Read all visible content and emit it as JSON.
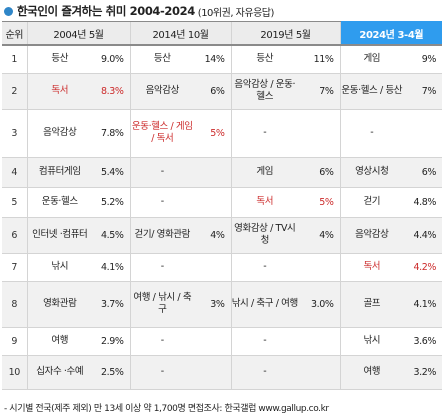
{
  "title": "한국인이 즐겨하는 취미 2004-2024",
  "subtitle": "(10위권, 자유응답)",
  "headers": [
    "순위",
    "2004년 5월",
    "2014년 10월",
    "2019년 5월",
    "2024년 3-4월"
  ],
  "rows": [
    {
      "rank": "1",
      "c1": {
        "item": "등산",
        "pct": "9.0%"
      },
      "c2": {
        "item": "등산",
        "pct": "14%"
      },
      "c3": {
        "item": "등산",
        "pct": "11%"
      },
      "c4": {
        "item": "게임",
        "pct": "9%"
      }
    },
    {
      "rank": "2",
      "c1": {
        "item": "독서",
        "pct": "8.3%"
      },
      "c2": {
        "item": "음악감상",
        "pct": "6%"
      },
      "c3": {
        "item": "음악감상 / 운동·헬스",
        "pct": "7%"
      },
      "c4": {
        "item": "운동·헬스 / 등산",
        "pct": "7%"
      }
    },
    {
      "rank": "3",
      "c1": {
        "item": "음악감상",
        "pct": "7.8%"
      },
      "c2": {
        "item": "운동·헬스 / 게임 / 독서",
        "pct": "5%"
      },
      "c3": {
        "item": "-",
        "pct": ""
      },
      "c4": {
        "item": "-",
        "pct": ""
      }
    },
    {
      "rank": "4",
      "c1": {
        "item": "컴퓨터게임",
        "pct": "5.4%"
      },
      "c2": {
        "item": "-",
        "pct": ""
      },
      "c3": {
        "item": "게임",
        "pct": "6%"
      },
      "c4": {
        "item": "영상시청",
        "pct": "6%"
      }
    },
    {
      "rank": "5",
      "c1": {
        "item": "운동·헬스",
        "pct": "5.2%"
      },
      "c2": {
        "item": "-",
        "pct": ""
      },
      "c3": {
        "item": "독서",
        "pct": "5%"
      },
      "c4": {
        "item": "걷기",
        "pct": "4.8%"
      }
    },
    {
      "rank": "6",
      "c1": {
        "item": "인터넷 ·컴퓨터",
        "pct": "4.5%"
      },
      "c2": {
        "item": "걷기/ 영화관람",
        "pct": "4%"
      },
      "c3": {
        "item": "영화감상 / TV시청",
        "pct": "4%"
      },
      "c4": {
        "item": "음악감상",
        "pct": "4.4%"
      }
    },
    {
      "rank": "7",
      "c1": {
        "item": "낚시",
        "pct": "4.1%"
      },
      "c2": {
        "item": "-",
        "pct": ""
      },
      "c3": {
        "item": "-",
        "pct": ""
      },
      "c4": {
        "item": "독서",
        "pct": "4.2%"
      }
    },
    {
      "rank": "8",
      "c1": {
        "item": "영화관람",
        "pct": "3.7%"
      },
      "c2": {
        "item": "여행 / 낚시 / 축구",
        "pct": "3%"
      },
      "c3": {
        "item": "낚시 / 축구 / 여행",
        "pct": "3.0%"
      },
      "c4": {
        "item": "골프",
        "pct": "4.1%"
      }
    },
    {
      "rank": "9",
      "c1": {
        "item": "여행",
        "pct": "2.9%"
      },
      "c2": {
        "item": "-",
        "pct": ""
      },
      "c3": {
        "item": "-",
        "pct": ""
      },
      "c4": {
        "item": "낚시",
        "pct": "3.6%"
      }
    },
    {
      "rank": "10",
      "c1": {
        "item": "십자수 ·수예",
        "pct": "2.5%"
      },
      "c2": {
        "item": "-",
        "pct": ""
      },
      "c3": {
        "item": "-",
        "pct": ""
      },
      "c4": {
        "item": "여행",
        "pct": "3.2%"
      }
    }
  ],
  "footer": "- 시기별 전국(제주 제외) 만 13세 이상 약 1,700명 면접조사: 한국갤럽 www.gallup.co.kr",
  "colors": {
    "accent": "#2f9cee",
    "highlight_text": "#cc2b2b",
    "dot": "#2f86c8"
  }
}
